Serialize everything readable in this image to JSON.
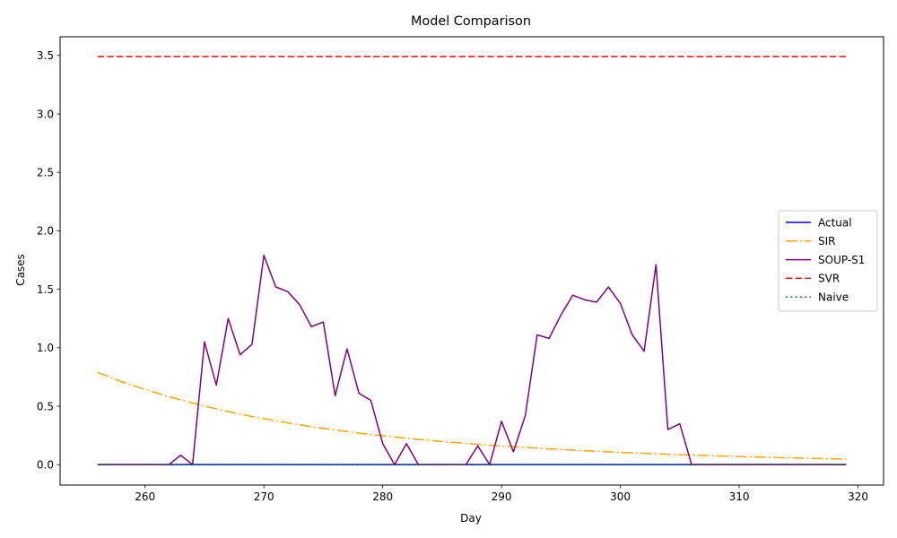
{
  "chart_data": {
    "type": "line",
    "title": "Model Comparison",
    "xlabel": "Day",
    "ylabel": "Cases",
    "xlim": [
      252.85,
      322.15
    ],
    "ylim": [
      -0.175,
      3.66
    ],
    "xticks": [
      260,
      270,
      280,
      290,
      300,
      310,
      320
    ],
    "yticks": [
      0.0,
      0.5,
      1.0,
      1.5,
      2.0,
      2.5,
      3.0,
      3.5
    ],
    "xtick_labels": [
      "260",
      "270",
      "280",
      "290",
      "300",
      "310",
      "320"
    ],
    "ytick_labels": [
      "0.0",
      "0.5",
      "1.0",
      "1.5",
      "2.0",
      "2.5",
      "3.0",
      "3.5"
    ],
    "grid": false,
    "legend_position": "center-right",
    "x": [
      256,
      257,
      258,
      259,
      260,
      261,
      262,
      263,
      264,
      265,
      266,
      267,
      268,
      269,
      270,
      271,
      272,
      273,
      274,
      275,
      276,
      277,
      278,
      279,
      280,
      281,
      282,
      283,
      284,
      285,
      286,
      287,
      288,
      289,
      290,
      291,
      292,
      293,
      294,
      295,
      296,
      297,
      298,
      299,
      300,
      301,
      302,
      303,
      304,
      305,
      306,
      307,
      308,
      309,
      310,
      311,
      312,
      313,
      314,
      315,
      316,
      317,
      318,
      319
    ],
    "series": [
      {
        "name": "Actual",
        "color": "#0000ff",
        "style": "solid",
        "values": [
          0,
          0,
          0,
          0,
          0,
          0,
          0,
          0,
          0,
          0,
          0,
          0,
          0,
          0,
          0,
          0,
          0,
          0,
          0,
          0,
          0,
          0,
          0,
          0,
          0,
          0,
          0,
          0,
          0,
          0,
          0,
          0,
          0,
          0,
          0,
          0,
          0,
          0,
          0,
          0,
          0,
          0,
          0,
          0,
          0,
          0,
          0,
          0,
          0,
          0,
          0,
          0,
          0,
          0,
          0,
          0,
          0,
          0,
          0,
          0,
          0,
          0,
          0,
          0
        ]
      },
      {
        "name": "SIR",
        "color": "#ffa500",
        "style": "dashdot",
        "values": [
          0.79,
          0.75,
          0.71,
          0.677,
          0.644,
          0.612,
          0.582,
          0.554,
          0.527,
          0.501,
          0.477,
          0.454,
          0.432,
          0.412,
          0.393,
          0.375,
          0.357,
          0.341,
          0.325,
          0.31,
          0.296,
          0.283,
          0.27,
          0.258,
          0.247,
          0.236,
          0.226,
          0.216,
          0.207,
          0.198,
          0.19,
          0.182,
          0.174,
          0.167,
          0.16,
          0.153,
          0.147,
          0.141,
          0.135,
          0.13,
          0.124,
          0.119,
          0.114,
          0.11,
          0.105,
          0.101,
          0.097,
          0.093,
          0.089,
          0.085,
          0.082,
          0.079,
          0.075,
          0.072,
          0.069,
          0.066,
          0.064,
          0.061,
          0.058,
          0.056,
          0.053,
          0.051,
          0.049,
          0.047
        ]
      },
      {
        "name": "SOUP-S1",
        "color": "#800080",
        "style": "solid",
        "values": [
          0,
          0,
          0,
          0,
          0,
          0,
          0,
          0.08,
          0,
          1.05,
          0.68,
          1.25,
          0.94,
          1.03,
          1.79,
          1.52,
          1.48,
          1.37,
          1.18,
          1.22,
          0.59,
          0.99,
          0.61,
          0.55,
          0.18,
          0,
          0.18,
          0,
          0,
          0,
          0,
          0,
          0.16,
          0,
          0.37,
          0.11,
          0.42,
          1.11,
          1.08,
          1.28,
          1.45,
          1.41,
          1.39,
          1.52,
          1.38,
          1.11,
          0.97,
          1.71,
          0.3,
          0.35,
          0,
          0,
          0,
          0,
          0,
          0,
          0,
          0,
          0,
          0,
          0,
          0,
          0,
          0
        ]
      },
      {
        "name": "SVR",
        "color": "#ff0000",
        "style": "dashed",
        "values": [
          3.49,
          3.49,
          3.49,
          3.49,
          3.49,
          3.49,
          3.49,
          3.49,
          3.49,
          3.49,
          3.49,
          3.49,
          3.49,
          3.49,
          3.49,
          3.49,
          3.49,
          3.49,
          3.49,
          3.49,
          3.49,
          3.49,
          3.49,
          3.49,
          3.49,
          3.49,
          3.49,
          3.49,
          3.49,
          3.49,
          3.49,
          3.49,
          3.49,
          3.49,
          3.49,
          3.49,
          3.49,
          3.49,
          3.49,
          3.49,
          3.49,
          3.49,
          3.49,
          3.49,
          3.49,
          3.49,
          3.49,
          3.49,
          3.49,
          3.49,
          3.49,
          3.49,
          3.49,
          3.49,
          3.49,
          3.49,
          3.49,
          3.49,
          3.49,
          3.49,
          3.49,
          3.49,
          3.49,
          3.49
        ]
      },
      {
        "name": "Naive",
        "color": "#008000",
        "style": "dotted",
        "values": [
          0,
          0,
          0,
          0,
          0,
          0,
          0,
          0,
          0,
          0,
          0,
          0,
          0,
          0,
          0,
          0,
          0,
          0,
          0,
          0,
          0,
          0,
          0,
          0,
          0,
          0,
          0,
          0,
          0,
          0,
          0,
          0,
          0,
          0,
          0,
          0,
          0,
          0,
          0,
          0,
          0,
          0,
          0,
          0,
          0,
          0,
          0,
          0,
          0,
          0,
          0,
          0,
          0,
          0,
          0,
          0,
          0,
          0,
          0,
          0,
          0,
          0,
          0,
          0
        ]
      }
    ]
  }
}
